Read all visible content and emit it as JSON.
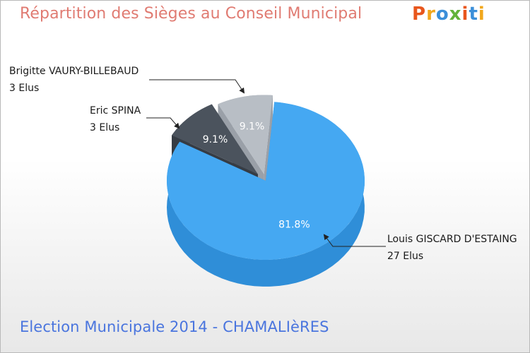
{
  "header": {
    "title": "Répartition des Sièges au Conseil Municipal",
    "logo_text": "Proxiti",
    "logo_colors": [
      "#e8561c",
      "#f1a71c",
      "#3b8fd9",
      "#62b33a",
      "#e8561c",
      "#3b8fd9",
      "#f1a71c"
    ]
  },
  "footer": {
    "subtitle": "Election Municipale 2014 - CHAMALIèRES"
  },
  "chart_data": {
    "type": "pie",
    "title": "Répartition des Sièges au Conseil Municipal",
    "slices": [
      {
        "label": "Louis GISCARD D'ESTAING",
        "detail": "27 Elus",
        "value": 27,
        "percent_label": "81.8%",
        "color": "#45a8f2",
        "side_color": "#2f8ed8",
        "pct_color": "#ffffff"
      },
      {
        "label": "Eric SPINA",
        "detail": "3 Elus",
        "value": 3,
        "percent_label": "9.1%",
        "color": "#4b535d",
        "side_color": "#363c44",
        "pct_color": "#ffffff"
      },
      {
        "label": "Brigitte VAURY-BILLEBAUD",
        "detail": "3 Elus",
        "value": 3,
        "percent_label": "9.1%",
        "color": "#b8bec5",
        "side_color": "#9aa0a8",
        "pct_color": "#ffffff"
      }
    ]
  }
}
